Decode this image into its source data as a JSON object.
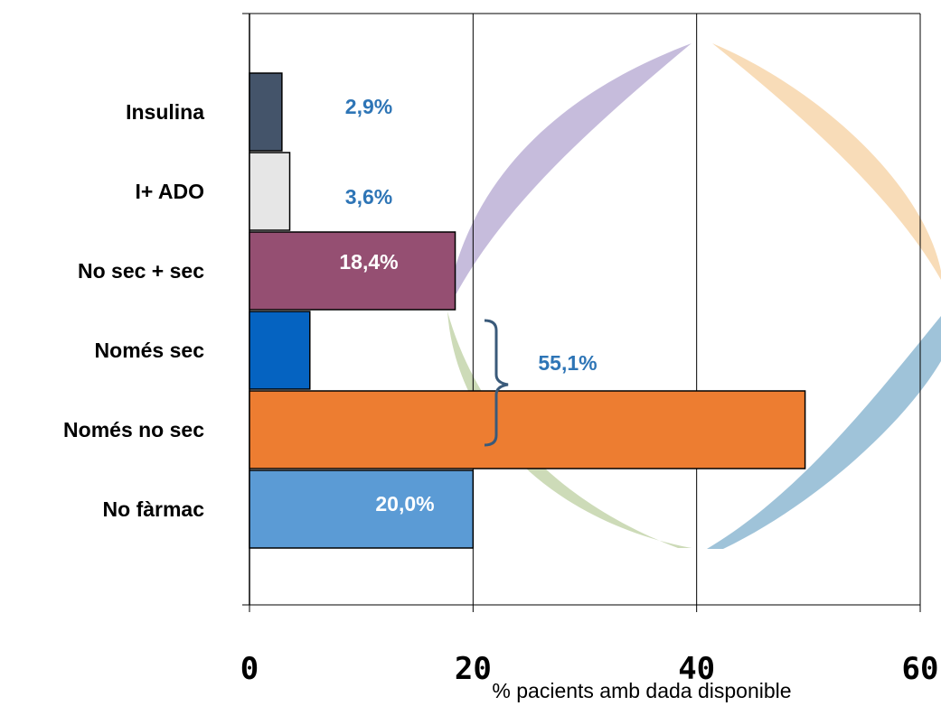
{
  "chart_data": {
    "type": "bar",
    "orientation": "horizontal",
    "categories": [
      "Insulina",
      "I+ ADO",
      "No sec + sec",
      "Només sec",
      "Només no sec",
      "No fàrmac"
    ],
    "values": [
      2.9,
      3.6,
      18.4,
      5.4,
      49.7,
      20.0
    ],
    "colors": [
      "#44546a",
      "#e6e6e6",
      "#954f72",
      "#0563c1",
      "#ed7d31",
      "#5b9bd5"
    ],
    "data_labels": [
      {
        "category": "Insulina",
        "text": "2,9%",
        "color": "#2e75b6"
      },
      {
        "category": "I+ ADO",
        "text": "3,6%",
        "color": "#2e75b6"
      },
      {
        "category": "No sec + sec",
        "text": "18,4%",
        "color": "#ffffff"
      },
      {
        "category": "No fàrmac",
        "text": "20,0%",
        "color": "#ffffff"
      }
    ],
    "group_annotation": {
      "categories": [
        "Només sec",
        "Només no sec"
      ],
      "text": "55,1%",
      "color": "#2e75b6"
    },
    "x_ticks": [
      "0",
      "20",
      "40",
      "60"
    ],
    "xlim": [
      0,
      60
    ],
    "xlabel": "% pacients amb dada disponible",
    "ylabel": "",
    "title": "",
    "grid": "vertical"
  }
}
